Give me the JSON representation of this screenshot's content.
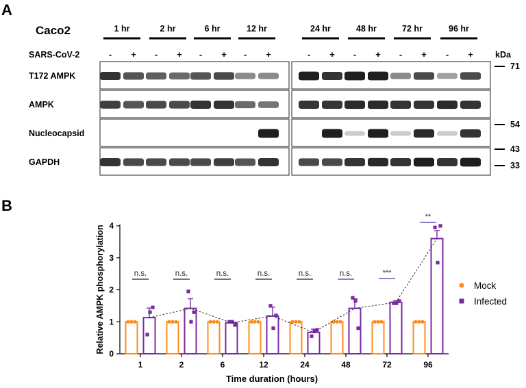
{
  "panel_a": {
    "letter": "A",
    "cell_line": "Caco2",
    "condition_label": "SARS-CoV-2",
    "timepoints": [
      "1 hr",
      "2 hr",
      "6 hr",
      "12 hr",
      "24 hr",
      "48 hr",
      "72 hr",
      "96 hr"
    ],
    "lane_signs": [
      "-",
      "+"
    ],
    "kda_label": "kDa",
    "blots": [
      {
        "label": "T172 AMPK",
        "intensities": [
          0.85,
          0.7,
          0.65,
          0.6,
          0.7,
          0.75,
          0.45,
          0.45,
          0.95,
          0.85,
          0.95,
          0.95,
          0.45,
          0.75,
          0.35,
          0.75
        ]
      },
      {
        "label": "AMPK",
        "intensities": [
          0.8,
          0.7,
          0.75,
          0.75,
          0.85,
          0.85,
          0.6,
          0.55,
          0.85,
          0.85,
          0.9,
          0.9,
          0.85,
          0.85,
          0.9,
          0.85
        ]
      },
      {
        "label": "Nucleocapsid",
        "intensities": [
          0,
          0,
          0,
          0,
          0,
          0,
          0,
          0.95,
          0,
          0.95,
          0.15,
          0.95,
          0.15,
          0.9,
          0.15,
          0.85
        ]
      },
      {
        "label": "GAPDH",
        "intensities": [
          0.85,
          0.75,
          0.75,
          0.75,
          0.75,
          0.8,
          0.7,
          0.85,
          0.75,
          0.75,
          0.85,
          0.9,
          0.85,
          0.95,
          0.85,
          0.95
        ]
      }
    ],
    "markers": [
      "71",
      "54",
      "43",
      "33"
    ]
  },
  "panel_b": {
    "letter": "B",
    "colors": {
      "mock": "#ff8c1a",
      "infected": "#7a2aa5"
    }
  },
  "chart_data": {
    "type": "bar",
    "title": "",
    "xlabel": "Time duration (hours)",
    "ylabel": "Relative AMPK phosphorylation",
    "ylim": [
      0,
      4
    ],
    "yticks": [
      0,
      1,
      2,
      3,
      4
    ],
    "categories": [
      "1",
      "2",
      "6",
      "12",
      "24",
      "48",
      "72",
      "96"
    ],
    "series": [
      {
        "name": "Mock",
        "values": [
          1,
          1,
          1,
          1,
          1,
          1,
          1,
          1
        ],
        "error": [
          0,
          0,
          0,
          0,
          0,
          0,
          0,
          0
        ],
        "points": [
          [
            1,
            1,
            1
          ],
          [
            1,
            1,
            1
          ],
          [
            1,
            1,
            1
          ],
          [
            1,
            1,
            1
          ],
          [
            1,
            1,
            1
          ],
          [
            1,
            1,
            1
          ],
          [
            1,
            1,
            1
          ],
          [
            1,
            1,
            1
          ]
        ]
      },
      {
        "name": "Infected",
        "values": [
          1.13,
          1.42,
          0.97,
          1.18,
          0.67,
          1.42,
          1.61,
          3.6
        ],
        "error": [
          0.3,
          0.3,
          0.05,
          0.28,
          0.1,
          0.3,
          0.05,
          0.25
        ],
        "points": [
          [
            0.6,
            1.45,
            1.3
          ],
          [
            1.95,
            1.3,
            1.0
          ],
          [
            1.0,
            0.9,
            1.0
          ],
          [
            1.5,
            1.2,
            0.8
          ],
          [
            0.55,
            0.75,
            0.7
          ],
          [
            1.75,
            0.8,
            1.65
          ],
          [
            1.58,
            1.65,
            1.58
          ],
          [
            3.95,
            4.0,
            2.85
          ]
        ]
      }
    ],
    "significance": [
      "n.s.",
      "n.s.",
      "n.s.",
      "n.s.",
      "n.s.",
      "n.s.",
      "***",
      "**"
    ],
    "legend": {
      "placement": "right",
      "entries": [
        "Mock",
        "Infected"
      ]
    }
  }
}
